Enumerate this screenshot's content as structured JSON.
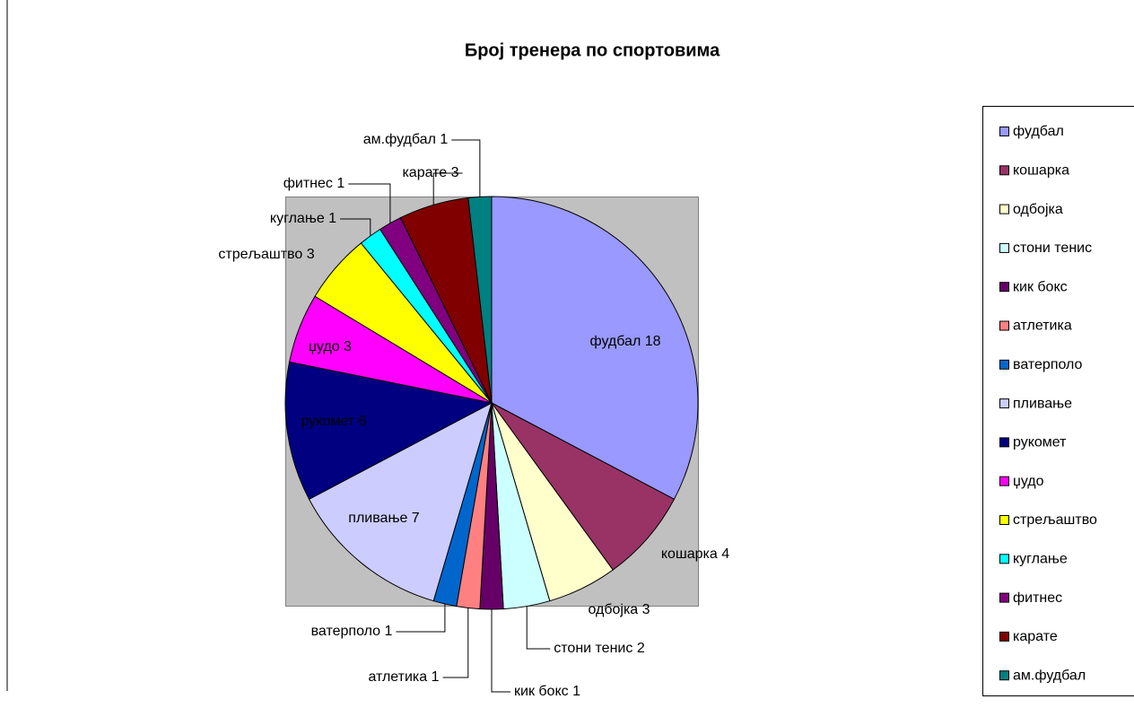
{
  "chart_data": {
    "type": "pie",
    "title": "Број тренера по спортовима",
    "categories": [
      "фудбал",
      "кошарка",
      "одбојка",
      "стони тенис",
      "кик бокс",
      "атлетика",
      "ватерполо",
      "пливање",
      "рукомет",
      "џудо",
      "стрељаштво",
      "куглање",
      "фитнес",
      "карате",
      "ам.фудбал"
    ],
    "values": [
      18,
      4,
      3,
      2,
      1,
      1,
      1,
      7,
      6,
      3,
      3,
      1,
      1,
      3,
      1
    ],
    "colors": [
      "#9999ff",
      "#993366",
      "#ffffcc",
      "#ccffff",
      "#660066",
      "#ff8080",
      "#0066cc",
      "#ccccff",
      "#000080",
      "#ff00ff",
      "#ffff00",
      "#00ffff",
      "#800080",
      "#800000",
      "#008080"
    ],
    "legend": "right"
  }
}
